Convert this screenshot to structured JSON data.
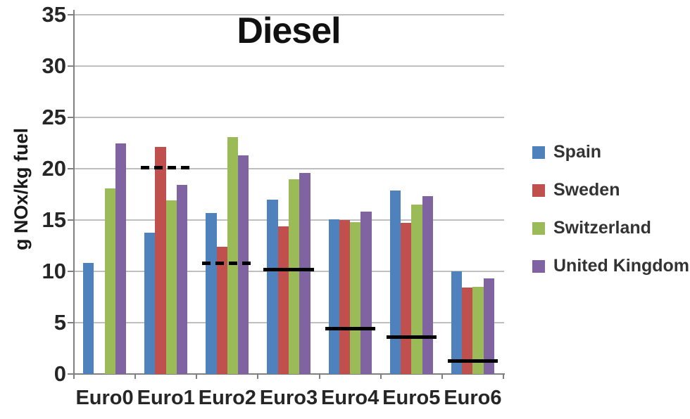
{
  "chart_data": {
    "type": "bar",
    "title": "Diesel",
    "xlabel": "",
    "ylabel": "g NOx/kg fuel",
    "categories": [
      "Euro0",
      "Euro1",
      "Euro2",
      "Euro3",
      "Euro4",
      "Euro5",
      "Euro6"
    ],
    "series": [
      {
        "name": "Spain",
        "color": "#4F81BD",
        "values": [
          10.8,
          13.8,
          15.7,
          17.0,
          15.1,
          17.9,
          10.0
        ]
      },
      {
        "name": "Sweden",
        "color": "#C0504D",
        "values": [
          null,
          22.1,
          12.4,
          14.4,
          15.0,
          14.7,
          8.4
        ]
      },
      {
        "name": "Switzerland",
        "color": "#9BBB59",
        "values": [
          18.1,
          16.9,
          23.1,
          19.0,
          14.8,
          16.5,
          8.5
        ]
      },
      {
        "name": "United Kingdom",
        "color": "#8064A2",
        "values": [
          22.5,
          18.4,
          21.3,
          19.6,
          15.8,
          17.3,
          9.3
        ]
      }
    ],
    "limit_lines": [
      {
        "category": "Euro1",
        "value": 20.1,
        "style": "dashed"
      },
      {
        "category": "Euro2",
        "value": 10.8,
        "style": "dashed"
      },
      {
        "category": "Euro3",
        "value": 10.2,
        "style": "solid"
      },
      {
        "category": "Euro4",
        "value": 4.4,
        "style": "solid"
      },
      {
        "category": "Euro5",
        "value": 3.6,
        "style": "solid"
      },
      {
        "category": "Euro6",
        "value": 1.3,
        "style": "solid"
      }
    ],
    "ylim": [
      0,
      35
    ],
    "yticks": [
      0,
      5,
      10,
      15,
      20,
      25,
      30,
      35
    ],
    "grid": true,
    "legend_position": "right",
    "colors": {
      "gridline": "#BFBFBF",
      "axis": "#808080",
      "tick_text": "#262626",
      "title_text": "#111111",
      "limit_line": "#000000"
    }
  }
}
